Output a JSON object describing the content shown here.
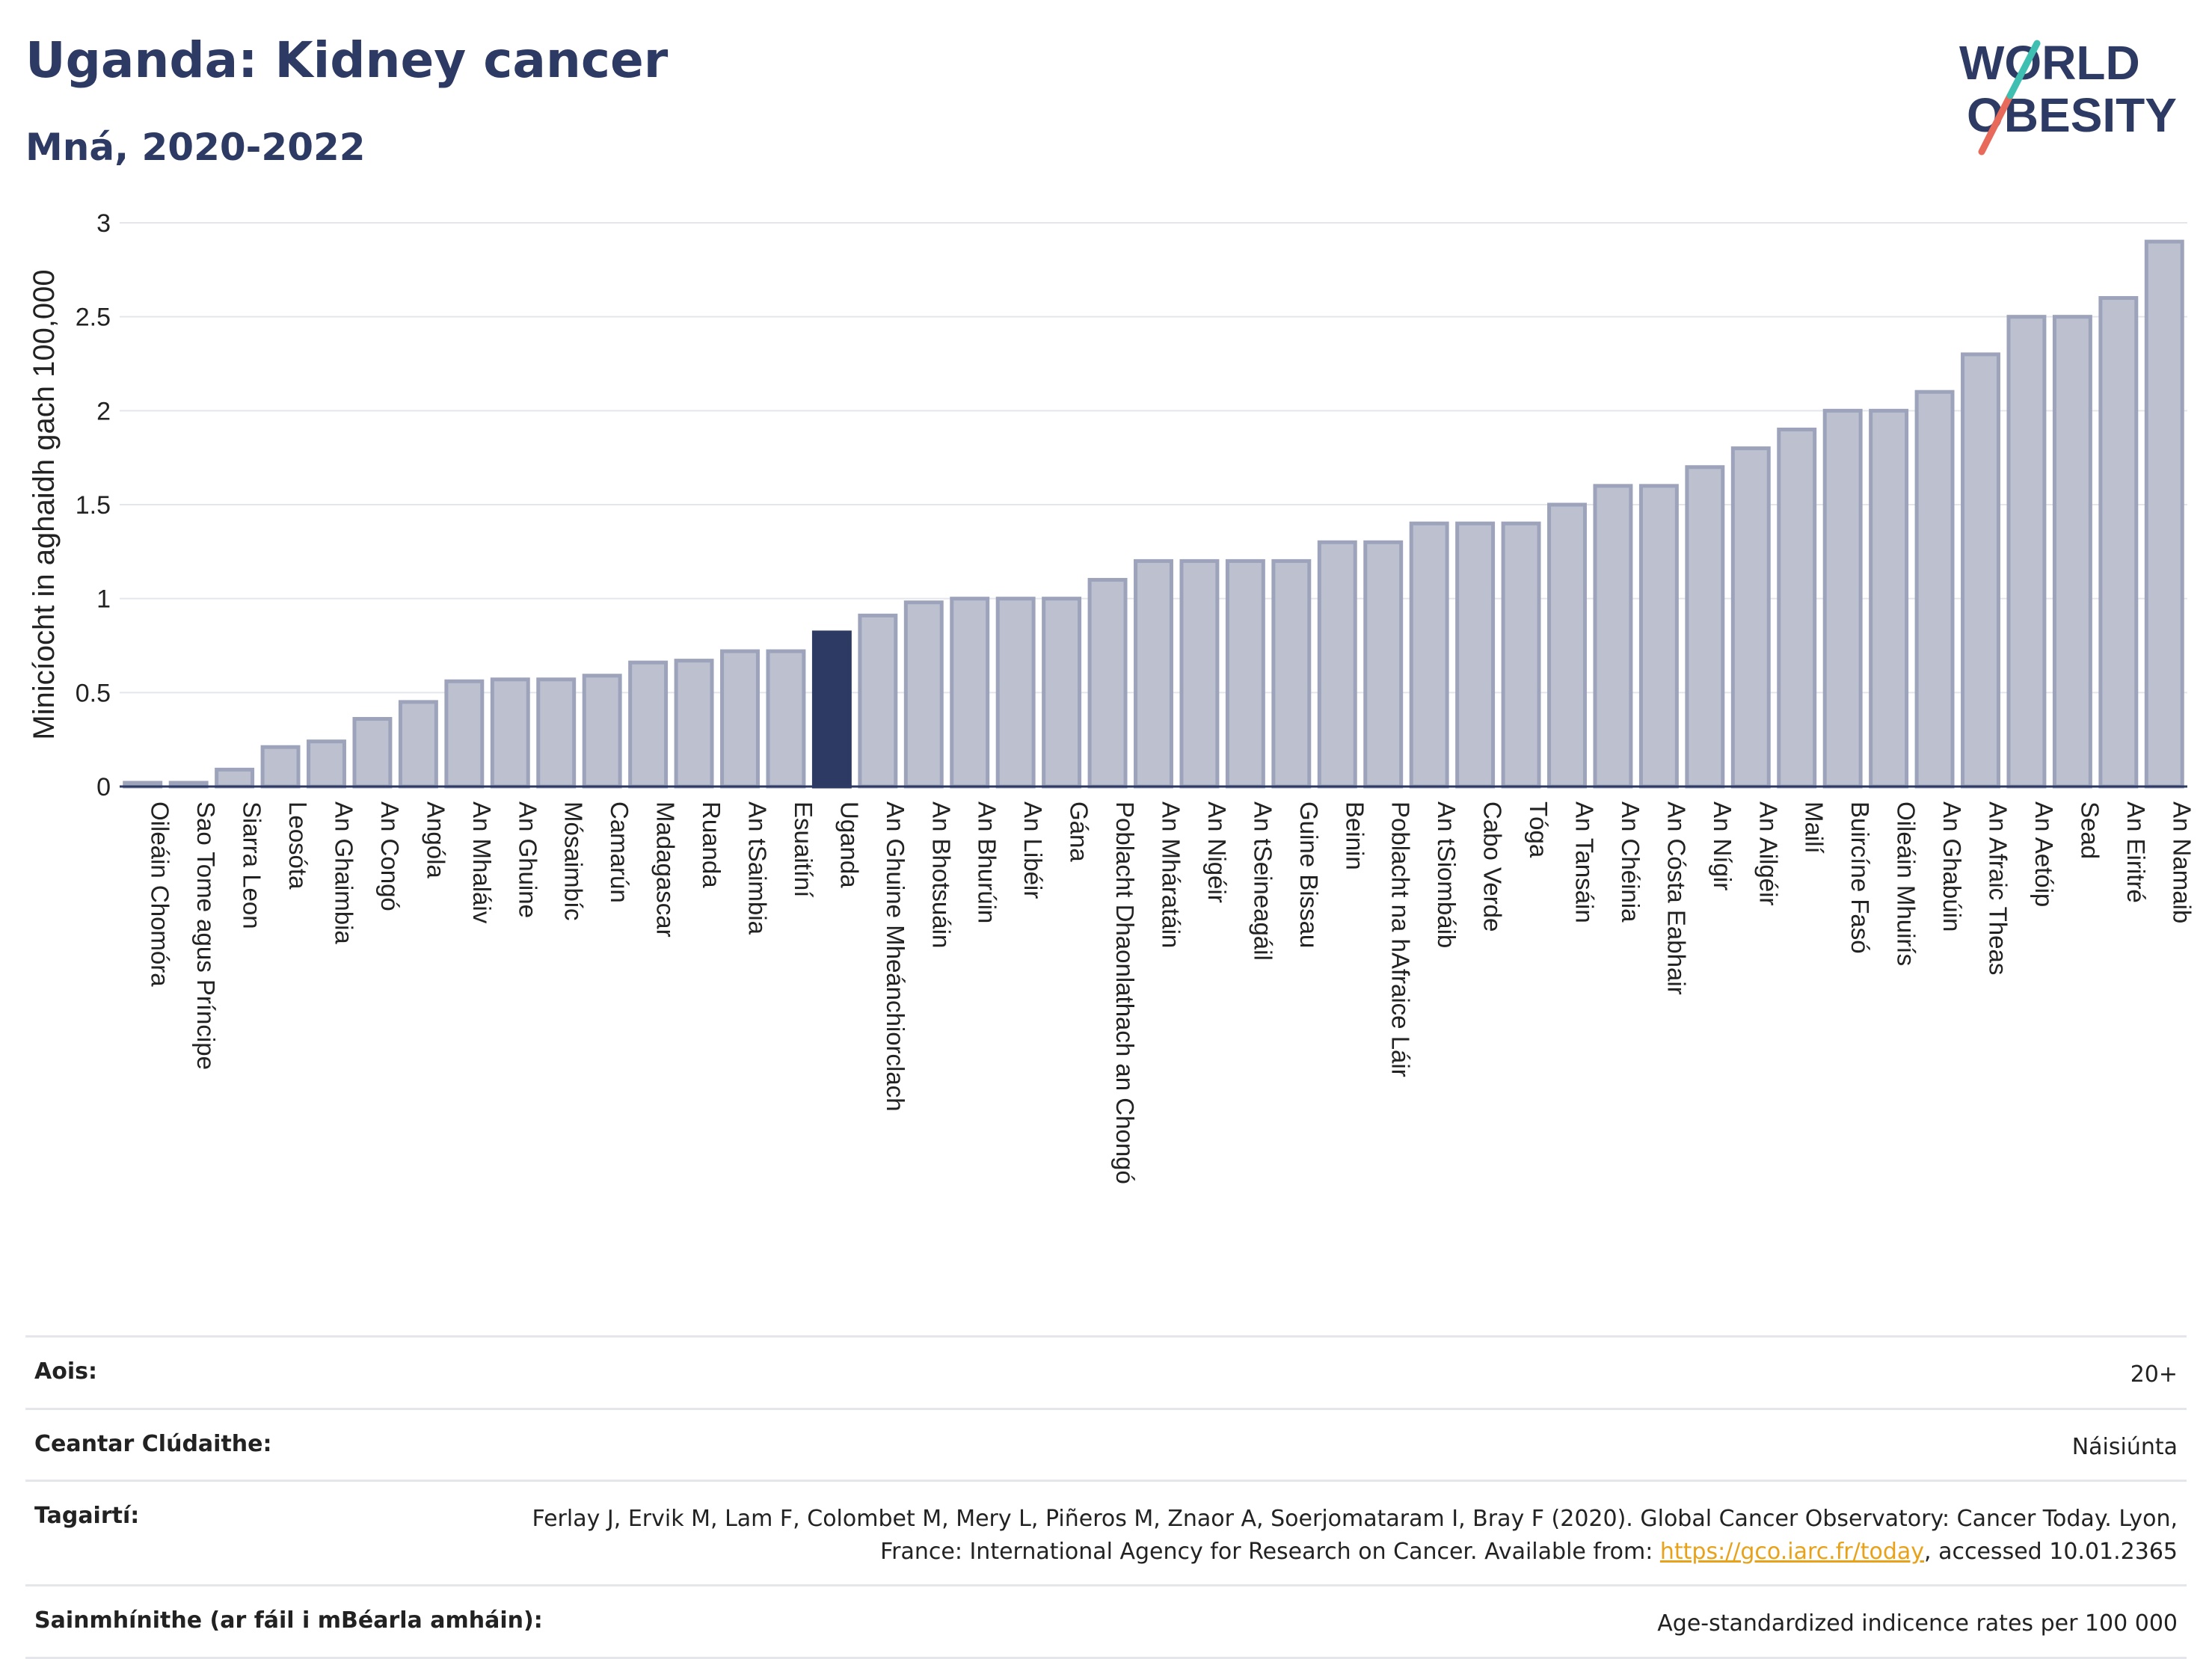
{
  "title": "Uganda: Kidney cancer",
  "subtitle": "Mná, 2020-2022",
  "logo": {
    "line1": "WORLD",
    "line2": "OBESITY"
  },
  "chart_data": {
    "type": "bar",
    "ylabel": "Minicíocht in aghaidh gach 100,000",
    "ylim": [
      0,
      3
    ],
    "yticks": [
      0,
      0.5,
      1,
      1.5,
      2,
      2.5,
      3
    ],
    "ytick_labels": [
      "0",
      "0.5",
      "1",
      "1.5",
      "2",
      "2.5",
      "3"
    ],
    "grid": true,
    "highlight": "Uganda",
    "colors": {
      "bar": "#bcc0cf",
      "bar_edge": "#9da3bb",
      "highlight": "#2d3a63"
    },
    "categories": [
      "Oileáin Chomóra",
      "Sao Tome agus Príncipe",
      "Siarra Leon",
      "Leosóta",
      "An Ghaimbia",
      "An Congó",
      "Angóla",
      "An Mhaláiv",
      "An Ghuine",
      "Mósaimbíc",
      "Camarún",
      "Madagascar",
      "Ruanda",
      "An tSaimbia",
      "Esuaitíní",
      "Uganda",
      "An Ghuine Mheánchiorclach",
      "An Bhotsuáin",
      "An Bhurúin",
      "An Libéir",
      "Gána",
      "Poblacht Dhaonlathach an Chongó",
      "An Mháratáin",
      "An Nigéir",
      "An tSeineagáil",
      "Guine Bissau",
      "Beinin",
      "Poblacht na hAfraice Láir",
      "An tSiombáib",
      "Cabo Verde",
      "Tóga",
      "An Tansáin",
      "An Chéinia",
      "An Cósta Eabhair",
      "An Nígir",
      "An Ailgéir",
      "Mailí",
      "Buircíne Fasó",
      "Oileáin Mhuirís",
      "An Ghabúin",
      "An Afraic Theas",
      "An Aetóip",
      "Sead",
      "An Eiritré",
      "An Namaib"
    ],
    "values": [
      0.02,
      0.02,
      0.09,
      0.21,
      0.24,
      0.36,
      0.45,
      0.56,
      0.57,
      0.57,
      0.59,
      0.66,
      0.67,
      0.72,
      0.72,
      0.82,
      0.91,
      0.98,
      1.0,
      1.0,
      1.0,
      1.1,
      1.2,
      1.2,
      1.2,
      1.2,
      1.3,
      1.3,
      1.4,
      1.4,
      1.4,
      1.5,
      1.6,
      1.6,
      1.7,
      1.8,
      1.9,
      2.0,
      2.0,
      2.1,
      2.3,
      2.5,
      2.5,
      2.6,
      2.9
    ]
  },
  "footer": {
    "age_label": "Aois:",
    "age_value": "20+",
    "area_label": "Ceantar Clúdaithe:",
    "area_value": "Náisiúnta",
    "refs_label": "Tagairtí:",
    "refs_text_1": "Ferlay J, Ervik M, Lam F, Colombet M, Mery L, Piñeros M, Znaor A, Soerjomataram I, Bray F (2020). Global Cancer Observatory: Cancer Today. Lyon, France: International Agency for Research on Cancer. Available from: ",
    "refs_link": "https://gco.iarc.fr/today",
    "refs_text_2": ", accessed 10.01.2365",
    "defs_label": "Sainmhínithe (ar fáil i mBéarla amháin):",
    "defs_value": "Age-standardized indicence rates per 100 000"
  }
}
